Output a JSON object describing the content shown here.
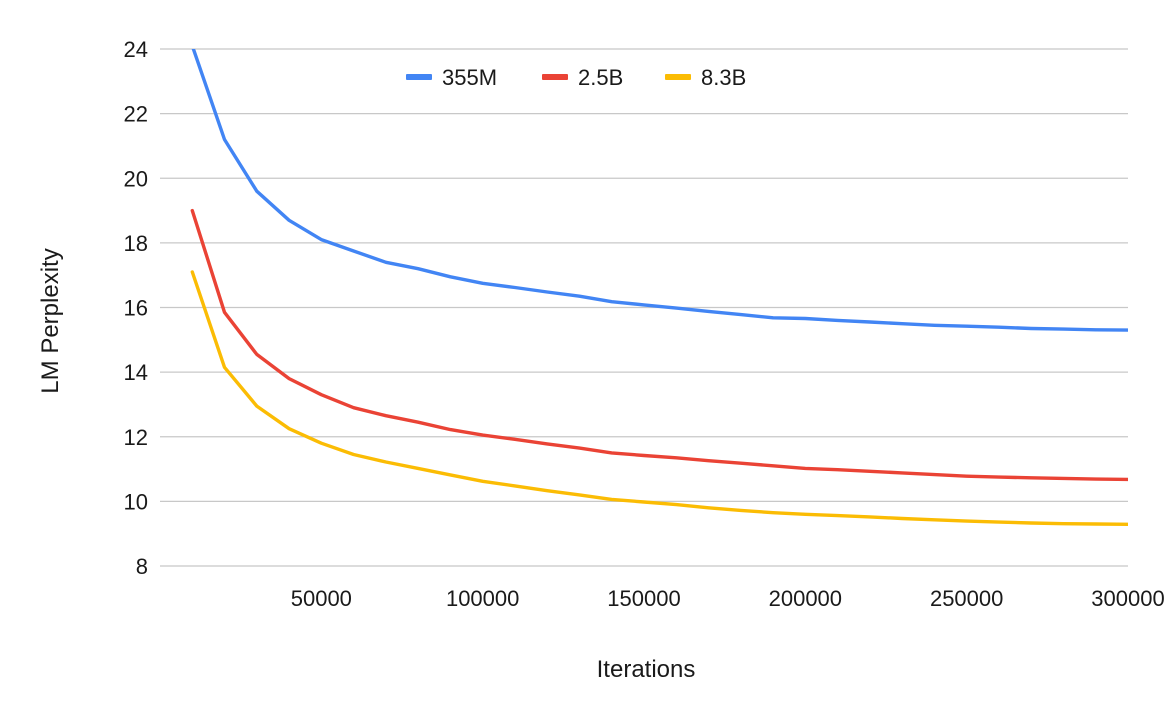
{
  "chart_data": {
    "type": "line",
    "title": "",
    "xlabel": "Iterations",
    "ylabel": "LM Perplexity",
    "xlim": [
      0,
      300000
    ],
    "ylim": [
      8,
      24
    ],
    "yticks": [
      "8",
      "10",
      "12",
      "14",
      "16",
      "18",
      "20",
      "22",
      "24"
    ],
    "xticks": [
      "50000",
      "100000",
      "150000",
      "200000",
      "250000",
      "300000"
    ],
    "grid": true,
    "legend_position": "top-center",
    "x": [
      10000,
      20000,
      30000,
      40000,
      50000,
      60000,
      70000,
      80000,
      90000,
      100000,
      110000,
      120000,
      130000,
      140000,
      150000,
      160000,
      170000,
      180000,
      190000,
      200000,
      210000,
      220000,
      230000,
      240000,
      250000,
      260000,
      270000,
      280000,
      290000,
      300000
    ],
    "series": [
      {
        "name": "355M",
        "color": "#4285f4",
        "values": [
          24.1,
          21.2,
          19.6,
          18.7,
          18.1,
          17.75,
          17.4,
          17.2,
          16.95,
          16.75,
          16.62,
          16.48,
          16.35,
          16.18,
          16.08,
          15.98,
          15.88,
          15.78,
          15.68,
          15.66,
          15.6,
          15.55,
          15.5,
          15.45,
          15.42,
          15.39,
          15.35,
          15.33,
          15.31,
          15.3
        ]
      },
      {
        "name": "2.5B",
        "color": "#ea4335",
        "values": [
          19.0,
          15.85,
          14.55,
          13.8,
          13.3,
          12.9,
          12.65,
          12.45,
          12.22,
          12.05,
          11.92,
          11.78,
          11.65,
          11.5,
          11.42,
          11.35,
          11.26,
          11.18,
          11.1,
          11.02,
          10.98,
          10.93,
          10.88,
          10.83,
          10.78,
          10.75,
          10.73,
          10.71,
          10.69,
          10.68
        ]
      },
      {
        "name": "8.3B",
        "color": "#fbbc04",
        "values": [
          17.1,
          14.15,
          12.95,
          12.25,
          11.8,
          11.45,
          11.22,
          11.02,
          10.82,
          10.62,
          10.48,
          10.33,
          10.2,
          10.06,
          9.98,
          9.9,
          9.8,
          9.72,
          9.65,
          9.6,
          9.56,
          9.52,
          9.47,
          9.43,
          9.39,
          9.36,
          9.33,
          9.31,
          9.3,
          9.29
        ]
      }
    ]
  }
}
